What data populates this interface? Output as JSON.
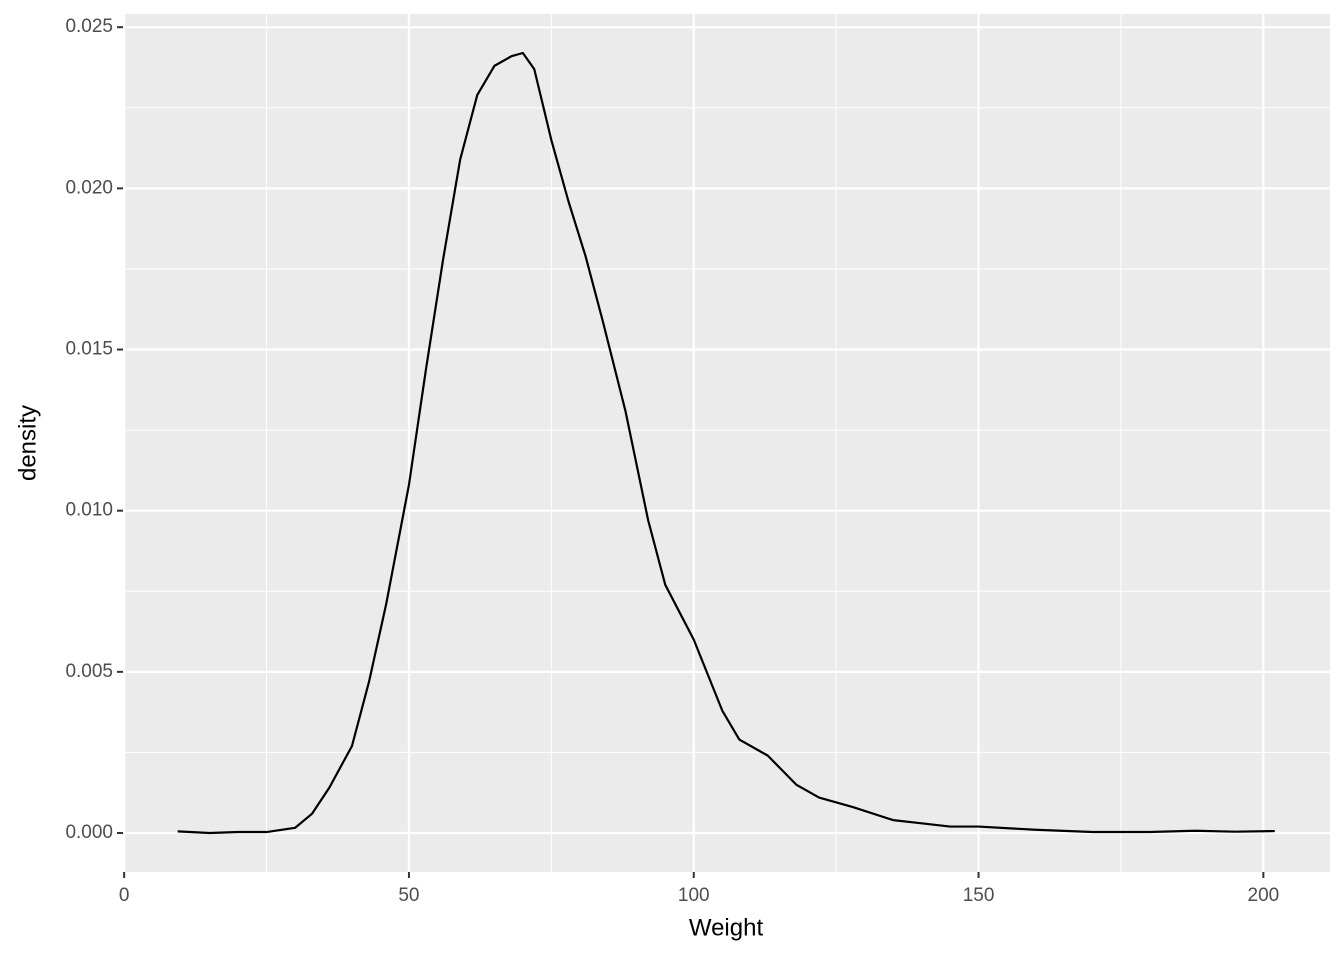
{
  "chart_data": {
    "type": "line",
    "x_label": "Weight",
    "y_label": "density",
    "x": [
      9.4,
      15,
      20,
      25,
      30,
      33,
      36,
      40,
      43,
      46,
      50,
      53,
      56,
      59,
      62,
      65,
      68,
      70,
      72,
      75,
      78,
      81,
      84,
      88,
      92,
      95,
      100,
      105,
      108,
      113,
      118,
      122,
      128,
      135,
      140,
      145,
      150,
      160,
      170,
      180,
      188,
      195,
      202
    ],
    "values": [
      5e-05,
      0,
      3e-05,
      3e-05,
      0.00016,
      0.0006,
      0.0014,
      0.0027,
      0.0047,
      0.0071,
      0.0108,
      0.0144,
      0.0178,
      0.0209,
      0.0229,
      0.0238,
      0.0241,
      0.0242,
      0.0237,
      0.0215,
      0.0196,
      0.0179,
      0.0159,
      0.0131,
      0.0097,
      0.0077,
      0.006,
      0.0038,
      0.0029,
      0.0024,
      0.0015,
      0.0011,
      0.0008,
      0.0004,
      0.0003,
      0.0002,
      0.0002,
      0.0001,
      3e-05,
      3e-05,
      7e-05,
      4e-05,
      6e-05
    ],
    "color": "#000000",
    "xlim": [
      -0.2,
      211.7
    ],
    "ylim": [
      -0.00121,
      0.02541
    ],
    "xticks": [
      0,
      50,
      100,
      150,
      200
    ],
    "yticks": [
      {
        "value": 0,
        "label": "0.000"
      },
      {
        "value": 0.005,
        "label": "0.005"
      },
      {
        "value": 0.01,
        "label": "0.010"
      },
      {
        "value": 0.015,
        "label": "0.015"
      },
      {
        "value": 0.02,
        "label": "0.020"
      },
      {
        "value": 0.025,
        "label": "0.025"
      }
    ],
    "grid": true,
    "minor_grid": true
  }
}
